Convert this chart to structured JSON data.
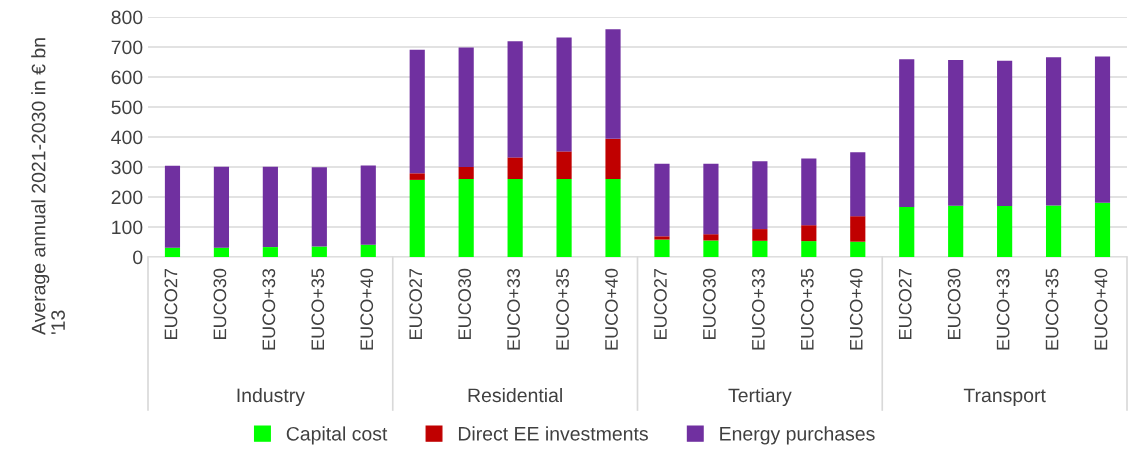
{
  "chart_data": {
    "type": "bar",
    "stacked": true,
    "ylabel": "Average annual 2021-2030 in € bn '13",
    "categories": [
      "EUCO27",
      "EUCO30",
      "EUCO+33",
      "EUCO+35",
      "EUCO+40",
      "EUCO27",
      "EUCO30",
      "EUCO+33",
      "EUCO+35",
      "EUCO+40",
      "EUCO27",
      "EUCO30",
      "EUCO+33",
      "EUCO+35",
      "EUCO+40",
      "EUCO27",
      "EUCO30",
      "EUCO+33",
      "EUCO+35",
      "EUCO+40"
    ],
    "annotations": [
      "Industry",
      "Residential",
      "Tertiary",
      "Transport"
    ],
    "series": [
      {
        "name": "Capital cost",
        "color": "#00ff00",
        "values": [
          31,
          31,
          33,
          35,
          41,
          257,
          260,
          260,
          260,
          260,
          58,
          55,
          54,
          53,
          51,
          167,
          171,
          170,
          172,
          181
        ]
      },
      {
        "name": "Direct EE investments",
        "color": "#c00000",
        "values": [
          0,
          0,
          0,
          0,
          0,
          22,
          40,
          72,
          92,
          134,
          11,
          21,
          39,
          53,
          85,
          0,
          0,
          0,
          0,
          0
        ]
      },
      {
        "name": "Energy purchases",
        "color": "#7030a0",
        "values": [
          273,
          270,
          268,
          264,
          264,
          412,
          398,
          387,
          380,
          365,
          242,
          235,
          226,
          222,
          213,
          492,
          486,
          484,
          494,
          487
        ]
      }
    ],
    "ylim": [
      0,
      800
    ],
    "yticks": [
      0,
      100,
      200,
      300,
      400,
      500,
      600,
      700,
      800
    ],
    "grid": "y",
    "legend": "bottom"
  }
}
